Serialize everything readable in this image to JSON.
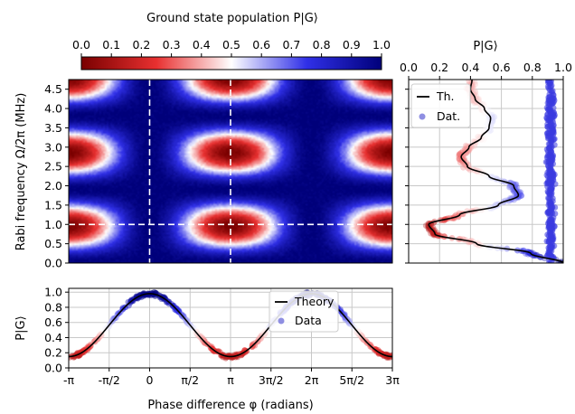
{
  "colors": {
    "low": "#8b0000",
    "mid": "#ffffff",
    "high": "#00008b",
    "data_red": "#e03030",
    "data_blue": "#3a3ae0",
    "theory": "#000000",
    "guide": "#ffffff"
  },
  "chart_data": [
    {
      "id": "colorbar",
      "type": "heatmap",
      "title": "Ground state population P|G⟩",
      "range": [
        0.0,
        1.0
      ],
      "tick_labels": [
        "0.0",
        "0.1",
        "0.2",
        "0.3",
        "0.4",
        "0.5",
        "0.6",
        "0.7",
        "0.8",
        "0.9",
        "1.0"
      ],
      "colormap": "seismic_r (red = 0, white = 0.5, blue = 1)"
    },
    {
      "id": "heatmap",
      "type": "heatmap",
      "ylabel": "Rabi frequency Ω/2π (MHz)",
      "xlim_rad": [
        -3.14159,
        9.42478
      ],
      "ylim": [
        0,
        4.75
      ],
      "y_tick_labels": [
        "0.0",
        "0.5",
        "1.0",
        "1.5",
        "2.0",
        "2.5",
        "3.0",
        "3.5",
        "4.0",
        "4.5"
      ],
      "y_tick_values": [
        0,
        0.5,
        1,
        1.5,
        2,
        2.5,
        3,
        3.5,
        4,
        4.5
      ],
      "guide_lines": {
        "vertical_phi_rad": [
          0,
          3.14159
        ],
        "horizontal_rabi_mhz": 1.0
      },
      "model": "P = 1 - sin²(φ/2)·sin²(πΩ·0.525)"
    },
    {
      "id": "side_panel",
      "type": "scatter",
      "title": "P|G⟩",
      "x_tick_labels": [
        "0.0",
        "0.2",
        "0.4",
        "0.6",
        "0.8",
        "1.0"
      ],
      "x_tick_values": [
        0,
        0.2,
        0.4,
        0.6,
        0.8,
        1
      ],
      "ylim": [
        0,
        4.75
      ],
      "legend": {
        "position": "top-left",
        "theory": "Th.",
        "data": "Dat."
      },
      "theory_curve": {
        "rabi_mhz": [
          0.0,
          0.25,
          0.5,
          0.75,
          1.0,
          1.25,
          1.5,
          1.75,
          2.0,
          2.25,
          2.5,
          2.75,
          3.0,
          3.25,
          3.5,
          3.75,
          4.0,
          4.25,
          4.5,
          4.75
        ],
        "p_g": [
          1.0,
          0.79,
          0.44,
          0.17,
          0.13,
          0.33,
          0.58,
          0.71,
          0.68,
          0.52,
          0.38,
          0.34,
          0.39,
          0.47,
          0.52,
          0.53,
          0.49,
          0.43,
          0.4,
          0.41
        ]
      },
      "data_series": [
        {
          "label": "cut at φ = π",
          "color": "gradient red→blue",
          "follows": "theory_curve"
        },
        {
          "label": "cut at φ = 0",
          "color": "blue",
          "p_g_mean": 0.92,
          "p_g_spread": 0.03
        }
      ]
    },
    {
      "id": "bottom_panel",
      "type": "line",
      "xlabel": "Phase difference φ (radians)",
      "ylabel": "P|G⟩",
      "ylim": [
        0,
        1.05
      ],
      "y_tick_labels": [
        "0.0",
        "0.2",
        "0.4",
        "0.6",
        "0.8",
        "1.0"
      ],
      "y_tick_values": [
        0,
        0.2,
        0.4,
        0.6,
        0.8,
        1
      ],
      "x_tick_labels": [
        "-π",
        "-π/2",
        "0",
        "π/2",
        "π",
        "3π/2",
        "2π",
        "5π/2",
        "3π"
      ],
      "x_tick_values_rad": [
        -3.14159,
        -1.5708,
        0,
        1.5708,
        3.14159,
        4.71239,
        6.28319,
        7.85398,
        9.42478
      ],
      "legend": {
        "position": "top-right",
        "theory": "Theory",
        "data": "Data"
      },
      "theory": {
        "min": 0.15,
        "max": 0.98,
        "form": "min + (max - min)·cos²(φ/2)"
      },
      "data_noise": 0.03
    }
  ]
}
